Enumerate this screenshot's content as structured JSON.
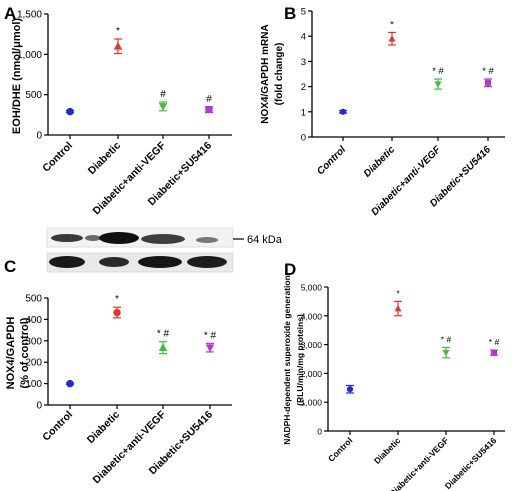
{
  "colors": [
    "#1f2bd8",
    "#e8332e",
    "#3fbf35",
    "#b534d8"
  ],
  "panels": [
    {
      "letter": "A",
      "ylabel": "EOH/DHE (nmol/μmol)",
      "ylabel2": "",
      "yticks": [
        "0",
        "500",
        "1,000",
        "1,500"
      ],
      "categories": [
        "Control",
        "Diabetic",
        "Diabetic+anti-VEGF",
        "Diabetic+SU5416"
      ],
      "italic": false,
      "sig": [
        "",
        "*",
        "#",
        "#"
      ]
    },
    {
      "letter": "B",
      "ylabel": "NOX4/GAPDH mRNA",
      "ylabel2": "(fold change)",
      "yticks": [
        "0",
        "1",
        "2",
        "3",
        "4",
        "5"
      ],
      "categories": [
        "Control",
        "Diabetic",
        "Diabetic+anti-VEGF",
        "Diabetic+SU5416"
      ],
      "italic": true,
      "sig": [
        "",
        "*",
        "* #",
        "* #"
      ]
    },
    {
      "letter": "C",
      "ylabel": "NOX4/GAPDH",
      "ylabel2": "(% of control)",
      "yticks": [
        "0",
        "100",
        "200",
        "300",
        "400",
        "500"
      ],
      "categories": [
        "Control",
        "Diabetic",
        "Diabetic+anti-VEGF",
        "Diabetic+SU5416"
      ],
      "italic": false,
      "sig": [
        "",
        "*",
        "* #",
        "* #"
      ]
    },
    {
      "letter": "D",
      "ylabel": "NADPH-dependent superoxide generation",
      "ylabel2": "(RLU/min/mg proteins)",
      "yticks": [
        "0",
        "1,000",
        "2,000",
        "3,000",
        "4,000",
        "5,000"
      ],
      "categories": [
        "Control",
        "Diabetic",
        "Diabetic+anti-VEGF",
        "Diabetic+SU5416"
      ],
      "italic": false,
      "sig": [
        "",
        "*",
        "* #",
        "* #"
      ]
    }
  ],
  "blot": {
    "label": "64 kDa"
  },
  "chart_data": [
    {
      "type": "scatter",
      "panel": "A",
      "categories": [
        "Control",
        "Diabetic",
        "Diabetic+anti-VEGF",
        "Diabetic+SU5416"
      ],
      "values": [
        290,
        1100,
        355,
        315
      ],
      "errors": [
        15,
        90,
        55,
        35
      ],
      "markers": [
        "circle",
        "triangle-up",
        "triangle-down",
        "square"
      ],
      "ylabel": "EOH/DHE (nmol/μmol)",
      "ylim": [
        0,
        1500
      ]
    },
    {
      "type": "scatter",
      "panel": "B",
      "categories": [
        "Control",
        "Diabetic",
        "Diabetic+anti-VEGF",
        "Diabetic+SU5416"
      ],
      "values": [
        1.0,
        3.9,
        2.1,
        2.15
      ],
      "errors": [
        0.05,
        0.25,
        0.2,
        0.15
      ],
      "markers": [
        "circle",
        "triangle-up",
        "triangle-down",
        "square"
      ],
      "ylabel": "NOX4/GAPDH mRNA (fold change)",
      "ylim": [
        0,
        5
      ]
    },
    {
      "type": "scatter",
      "panel": "C",
      "categories": [
        "Control",
        "Diabetic",
        "Diabetic+anti-VEGF",
        "Diabetic+SU5416"
      ],
      "values": [
        100,
        432,
        268,
        268
      ],
      "errors": [
        4,
        25,
        28,
        20
      ],
      "markers": [
        "circle",
        "circle",
        "triangle-up",
        "triangle-down"
      ],
      "ylabel": "NOX4/GAPDH (% of control)",
      "ylim": [
        0,
        500
      ]
    },
    {
      "type": "scatter",
      "panel": "D",
      "categories": [
        "Control",
        "Diabetic",
        "Diabetic+anti-VEGF",
        "Diabetic+SU5416"
      ],
      "values": [
        1450,
        4250,
        2720,
        2720
      ],
      "errors": [
        130,
        250,
        180,
        90
      ],
      "markers": [
        "circle",
        "triangle-up",
        "triangle-down",
        "square"
      ],
      "ylabel": "NADPH-dependent superoxide generation (RLU/min/mg proteins)",
      "ylim": [
        0,
        5000
      ]
    }
  ]
}
